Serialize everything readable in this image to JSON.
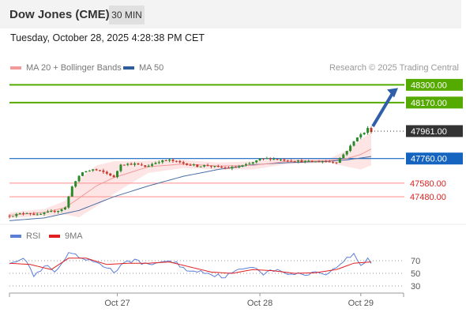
{
  "header": {
    "title": "Dow Jones (CME)",
    "timeframe": "30 MIN",
    "datetime": "Tuesday, October 28, 2025 4:28:38 PM CET"
  },
  "legend": {
    "ma_bb": "MA 20 + Bollinger Bands",
    "ma50": "MA 50",
    "credit": "Research © 2025 Trading Central"
  },
  "rsi_legend": {
    "rsi": "RSI",
    "ma": "9MA"
  },
  "colors": {
    "up": "#2a8a2a",
    "down": "#c0392b",
    "resistance": "#55aa00",
    "pivot": "#1565c0",
    "support": "#ff9999",
    "ma20": "#f29a9a",
    "ma50": "#4a6fa5",
    "band": "#fbd4d4",
    "rsi": "#5b7fd8",
    "rsi_ma": "#e02020",
    "current": "#333333",
    "arrow": "#2e5fa8"
  },
  "chart_data": {
    "type": "candlestick",
    "ylim": [
      47330,
      48360
    ],
    "x_ticks": [
      "Oct 27",
      "Oct 28",
      "Oct 29"
    ],
    "levels": [
      {
        "value": 48300,
        "label": "48300.00",
        "kind": "resistance"
      },
      {
        "value": 48170,
        "label": "48170.00",
        "kind": "resistance"
      },
      {
        "value": 47760,
        "label": "47760.00",
        "kind": "pivot"
      },
      {
        "value": 47580,
        "label": "47580.00",
        "kind": "support"
      },
      {
        "value": 47480,
        "label": "47480.00",
        "kind": "support"
      }
    ],
    "current": {
      "value": 47961,
      "label": "47961.00"
    },
    "anchors": [
      [
        0,
        47340
      ],
      [
        5,
        47365
      ],
      [
        8,
        47345
      ],
      [
        11,
        47365
      ],
      [
        14,
        47380
      ],
      [
        16,
        47400
      ],
      [
        18,
        47560
      ],
      [
        21,
        47660
      ],
      [
        24,
        47680
      ],
      [
        27,
        47660
      ],
      [
        29,
        47640
      ],
      [
        30,
        47620
      ],
      [
        32,
        47720
      ],
      [
        36,
        47720
      ],
      [
        39,
        47700
      ],
      [
        43,
        47740
      ],
      [
        46,
        47748
      ],
      [
        50,
        47725
      ],
      [
        54,
        47705
      ],
      [
        57,
        47710
      ],
      [
        60,
        47695
      ],
      [
        63,
        47690
      ],
      [
        66,
        47700
      ],
      [
        69,
        47720
      ],
      [
        72,
        47755
      ],
      [
        75,
        47760
      ],
      [
        78,
        47752
      ],
      [
        81,
        47745
      ],
      [
        84,
        47740
      ],
      [
        87,
        47735
      ],
      [
        90,
        47740
      ],
      [
        94,
        47735
      ],
      [
        96,
        47790
      ],
      [
        98,
        47850
      ],
      [
        100,
        47920
      ],
      [
        102,
        47950
      ],
      [
        103,
        47980
      ],
      [
        104,
        47961
      ]
    ],
    "ma20_anchors": [
      [
        0,
        47345
      ],
      [
        10,
        47365
      ],
      [
        16,
        47400
      ],
      [
        20,
        47470
      ],
      [
        25,
        47560
      ],
      [
        30,
        47620
      ],
      [
        35,
        47660
      ],
      [
        40,
        47700
      ],
      [
        50,
        47720
      ],
      [
        60,
        47705
      ],
      [
        70,
        47710
      ],
      [
        80,
        47740
      ],
      [
        92,
        47745
      ],
      [
        97,
        47760
      ],
      [
        101,
        47790
      ],
      [
        104,
        47830
      ]
    ],
    "ma50_anchors": [
      [
        0,
        47305
      ],
      [
        10,
        47325
      ],
      [
        20,
        47380
      ],
      [
        30,
        47480
      ],
      [
        40,
        47560
      ],
      [
        50,
        47630
      ],
      [
        60,
        47680
      ],
      [
        70,
        47715
      ],
      [
        80,
        47730
      ],
      [
        90,
        47738
      ],
      [
        97,
        47750
      ],
      [
        104,
        47775
      ]
    ],
    "bb_width_anchors": [
      [
        0,
        20
      ],
      [
        10,
        25
      ],
      [
        16,
        50
      ],
      [
        20,
        140
      ],
      [
        25,
        150
      ],
      [
        30,
        120
      ],
      [
        35,
        80
      ],
      [
        40,
        45
      ],
      [
        50,
        30
      ],
      [
        60,
        25
      ],
      [
        70,
        30
      ],
      [
        80,
        20
      ],
      [
        92,
        15
      ],
      [
        97,
        60
      ],
      [
        101,
        110
      ],
      [
        104,
        120
      ]
    ],
    "rsi": {
      "levels": [
        70,
        50,
        30
      ],
      "ylim": [
        20,
        100
      ],
      "anchors": [
        [
          0,
          68
        ],
        [
          3,
          72
        ],
        [
          5,
          70
        ],
        [
          7,
          45
        ],
        [
          9,
          55
        ],
        [
          11,
          62
        ],
        [
          13,
          50
        ],
        [
          15,
          65
        ],
        [
          17,
          80
        ],
        [
          19,
          78
        ],
        [
          22,
          70
        ],
        [
          25,
          68
        ],
        [
          28,
          60
        ],
        [
          30,
          52
        ],
        [
          33,
          65
        ],
        [
          36,
          72
        ],
        [
          40,
          62
        ],
        [
          44,
          70
        ],
        [
          48,
          66
        ],
        [
          52,
          52
        ],
        [
          55,
          55
        ],
        [
          58,
          48
        ],
        [
          62,
          45
        ],
        [
          66,
          55
        ],
        [
          70,
          62
        ],
        [
          73,
          50
        ],
        [
          76,
          55
        ],
        [
          80,
          50
        ],
        [
          84,
          48
        ],
        [
          88,
          52
        ],
        [
          92,
          50
        ],
        [
          96,
          70
        ],
        [
          99,
          80
        ],
        [
          101,
          62
        ],
        [
          103,
          74
        ],
        [
          104,
          66
        ]
      ],
      "ma_anchors": [
        [
          0,
          66
        ],
        [
          6,
          64
        ],
        [
          12,
          56
        ],
        [
          17,
          74
        ],
        [
          22,
          74
        ],
        [
          28,
          64
        ],
        [
          34,
          66
        ],
        [
          40,
          66
        ],
        [
          46,
          68
        ],
        [
          52,
          60
        ],
        [
          58,
          52
        ],
        [
          64,
          50
        ],
        [
          70,
          56
        ],
        [
          76,
          54
        ],
        [
          82,
          50
        ],
        [
          88,
          51
        ],
        [
          94,
          56
        ],
        [
          99,
          66
        ],
        [
          104,
          68
        ]
      ]
    }
  }
}
